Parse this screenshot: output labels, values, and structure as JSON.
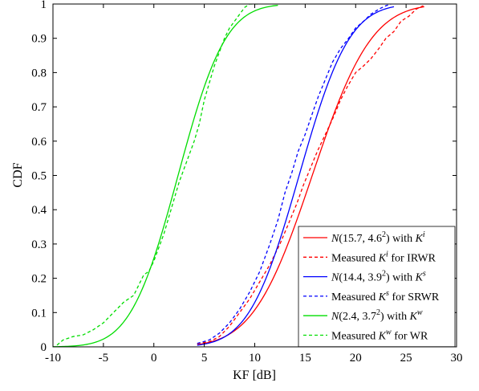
{
  "chart_data": {
    "type": "line",
    "title": "",
    "xlabel": "KF [dB]",
    "ylabel": "CDF",
    "xlim": [
      -10,
      30
    ],
    "ylim": [
      0,
      1
    ],
    "xticks": [
      -10,
      -5,
      0,
      5,
      10,
      15,
      20,
      25,
      30
    ],
    "yticks": [
      0,
      0.1,
      0.2,
      0.3,
      0.4,
      0.5,
      0.6,
      0.7,
      0.8,
      0.9,
      1
    ],
    "xtick_labels": [
      "-10",
      "-5",
      "0",
      "5",
      "10",
      "15",
      "20",
      "25",
      "30"
    ],
    "ytick_labels": [
      "0",
      "0.1",
      "0.2",
      "0.3",
      "0.4",
      "0.5",
      "0.6",
      "0.7",
      "0.8",
      "0.9",
      "1"
    ],
    "grid": false,
    "legend_position": "bottom-right",
    "series": [
      {
        "name": "N(15.7, 4.6²) with Kⁱ",
        "legend": {
          "prefix": "N(15.7, 4.6",
          "sup1": "2",
          "mid": ") with ",
          "sym": "K",
          "sup2": "i",
          "suffix": ""
        },
        "color": "#ff0000",
        "dash": "solid",
        "kind": "normal",
        "mu": 15.7,
        "sigma": 4.6,
        "x_range": [
          4.3,
          26.8
        ]
      },
      {
        "name": "Measured Kⁱ for IRWR",
        "legend": {
          "prefix": "Measured ",
          "sup1": "",
          "mid": "",
          "sym": "K",
          "sup2": "i",
          "suffix": " for IRWR"
        },
        "color": "#ff0000",
        "dash": "dashed",
        "kind": "empirical",
        "x": [
          4.3,
          5.5,
          6.5,
          7.5,
          8.5,
          9.5,
          10.5,
          11.5,
          12.5,
          13.5,
          14.2,
          14.8,
          15.5,
          16.2,
          17.0,
          17.8,
          18.5,
          19.2,
          20.0,
          20.8,
          21.5,
          22.3,
          23.0,
          23.8,
          24.5,
          25.3,
          26.0,
          26.7
        ],
        "y": [
          0.01,
          0.015,
          0.03,
          0.06,
          0.1,
          0.14,
          0.19,
          0.24,
          0.3,
          0.37,
          0.42,
          0.47,
          0.52,
          0.57,
          0.62,
          0.67,
          0.72,
          0.76,
          0.8,
          0.82,
          0.84,
          0.87,
          0.9,
          0.92,
          0.95,
          0.965,
          0.985,
          0.995
        ]
      },
      {
        "name": "N(14.4, 3.9²) with Kˢ",
        "legend": {
          "prefix": "N(14.4, 3.9",
          "sup1": "2",
          "mid": ") with ",
          "sym": "K",
          "sup2": "s",
          "suffix": ""
        },
        "color": "#0000ff",
        "dash": "solid",
        "kind": "normal",
        "mu": 14.4,
        "sigma": 3.9,
        "x_range": [
          4.3,
          23.8
        ]
      },
      {
        "name": "Measured Kˢ for SRWR",
        "legend": {
          "prefix": "Measured ",
          "sup1": "",
          "mid": "",
          "sym": "K",
          "sup2": "s",
          "suffix": " for SRWR"
        },
        "color": "#0000ff",
        "dash": "dashed",
        "kind": "empirical",
        "x": [
          4.3,
          5.5,
          6.5,
          7.5,
          8.5,
          9.5,
          10.5,
          11.5,
          12.3,
          13.0,
          13.7,
          14.3,
          15.0,
          15.7,
          16.3,
          17.0,
          17.7,
          18.5,
          19.3,
          20.0,
          20.8,
          21.5,
          22.3,
          23.0,
          23.5
        ],
        "y": [
          0.01,
          0.02,
          0.04,
          0.07,
          0.11,
          0.16,
          0.22,
          0.3,
          0.37,
          0.45,
          0.51,
          0.57,
          0.62,
          0.68,
          0.73,
          0.78,
          0.83,
          0.87,
          0.9,
          0.93,
          0.95,
          0.97,
          0.985,
          0.995,
          1.0
        ]
      },
      {
        "name": "N(2.4, 3.7²) with Kʷ",
        "legend": {
          "prefix": "N(2.4, 3.7",
          "sup1": "2",
          "mid": ") with ",
          "sym": "K",
          "sup2": "w",
          "suffix": ""
        },
        "color": "#00dd00",
        "dash": "solid",
        "kind": "normal",
        "mu": 2.4,
        "sigma": 3.7,
        "x_range": [
          -10,
          12.3
        ]
      },
      {
        "name": "Measured Kʷ for WR",
        "legend": {
          "prefix": "Measured ",
          "sup1": "",
          "mid": "",
          "sym": "K",
          "sup2": "w",
          "suffix": " for WR"
        },
        "color": "#00dd00",
        "dash": "dashed",
        "kind": "empirical",
        "x": [
          -9.6,
          -9.0,
          -8.0,
          -7.0,
          -6.0,
          -5.0,
          -4.0,
          -3.0,
          -2.0,
          -1.5,
          -1.0,
          -0.5,
          0.0,
          0.5,
          1.0,
          1.5,
          2.0,
          2.5,
          3.0,
          3.5,
          4.0,
          4.5,
          5.0,
          5.5,
          6.0,
          6.5,
          7.0,
          7.5,
          8.0,
          8.5,
          9.0,
          9.5,
          10.0,
          10.5
        ],
        "y": [
          0.005,
          0.02,
          0.03,
          0.035,
          0.05,
          0.07,
          0.1,
          0.13,
          0.15,
          0.18,
          0.21,
          0.22,
          0.25,
          0.29,
          0.33,
          0.38,
          0.43,
          0.48,
          0.52,
          0.56,
          0.6,
          0.65,
          0.72,
          0.77,
          0.82,
          0.86,
          0.9,
          0.93,
          0.95,
          0.97,
          0.99,
          1.0,
          1.0,
          1.0
        ]
      }
    ]
  }
}
